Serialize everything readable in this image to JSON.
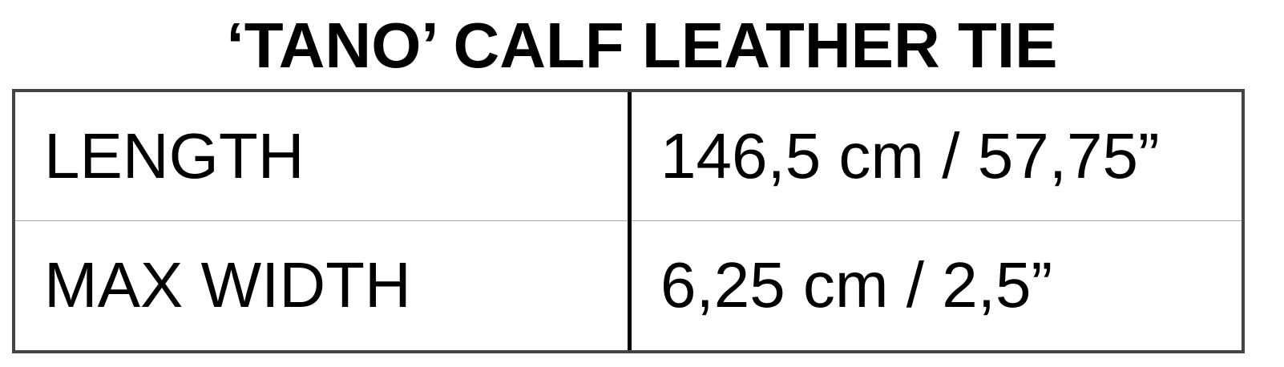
{
  "title": "‘TANO’ CALF LEATHER TIE",
  "rows": [
    {
      "label": "LENGTH",
      "value": "146,5 cm / 57,75”"
    },
    {
      "label": "MAX WIDTH",
      "value": "6,25 cm / 2,5”"
    }
  ]
}
